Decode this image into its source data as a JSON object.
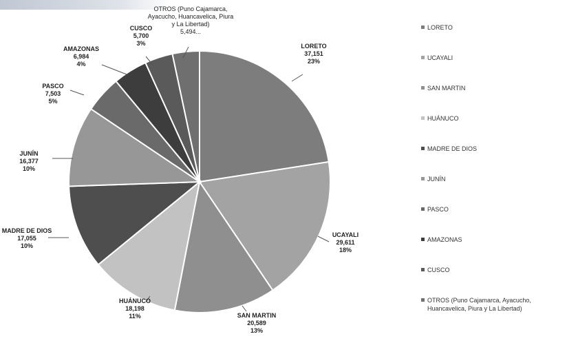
{
  "chart_data": {
    "type": "pie",
    "categories": [
      "LORETO",
      "UCAYALI",
      "SAN MARTIN",
      "HUÁNUCO",
      "MADRE DE DIOS",
      "JUNÍN",
      "PASCO",
      "AMAZONAS",
      "CUSCO",
      "OTROS (Puno Cajamarca, Ayacucho, Huancavelica, Piura y La Libertad)"
    ],
    "values": [
      37151,
      29611,
      20589,
      18198,
      17055,
      16377,
      7503,
      6984,
      5700,
      5494
    ],
    "slice_labels": [
      {
        "name": "LORETO",
        "value": "37,151",
        "pct": "23%"
      },
      {
        "name": "UCAYALI",
        "value": "29,611",
        "pct": "18%"
      },
      {
        "name": "SAN MARTIN",
        "value": "20,589",
        "pct": "13%"
      },
      {
        "name": "HUÁNUCO",
        "value": "18,198",
        "pct": "11%"
      },
      {
        "name": "MADRE DE DIOS",
        "value": "17,055",
        "pct": "10%"
      },
      {
        "name": "JUNÍN",
        "value": "16,377",
        "pct": "10%"
      },
      {
        "name": "PASCO",
        "value": "7,503",
        "pct": "5%"
      },
      {
        "name": "AMAZONAS",
        "value": "6,984",
        "pct": "4%"
      },
      {
        "name": "CUSCO",
        "value": "5,700",
        "pct": "3%"
      },
      {
        "name": "OTROS (Puno Cajamarca, Ayacucho, Huancavelica, Piura y La Libertad)",
        "value": "5,494...",
        "pct": ""
      }
    ],
    "legend_labels": [
      "LORETO",
      "UCAYALI",
      "SAN MARTIN",
      "HUÁNUCO",
      "MADRE DE DIOS",
      "JUNÍN",
      "PASCO",
      "AMAZONAS",
      "CUSCO",
      "OTROS (Puno Cajamarca, Ayacucho, Huancavelica, Piura y La Libertad)"
    ],
    "colors": [
      "#7d7d7d",
      "#a3a3a3",
      "#8f8f8f",
      "#c2c2c2",
      "#4e4e4e",
      "#979797",
      "#6a6a6a",
      "#3d3d3d",
      "#5a5a5a",
      "#6f6f6f"
    ],
    "legend": "right",
    "title": ""
  }
}
